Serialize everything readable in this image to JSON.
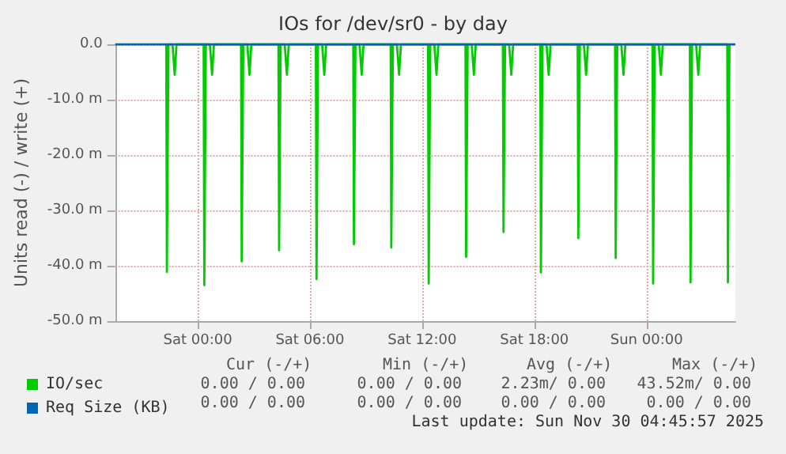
{
  "chart_data": {
    "type": "line",
    "title": "IOs for /dev/sr0 - by day",
    "ylabel": "Units read (-) / write (+)",
    "xlim": [
      "2025-11-28T19:35",
      "2025-11-30T04:45"
    ],
    "xticks": [
      {
        "value": "2025-11-29T00:00",
        "label": "Sat 00:00"
      },
      {
        "value": "2025-11-29T06:00",
        "label": "Sat 06:00"
      },
      {
        "value": "2025-11-29T12:00",
        "label": "Sat 12:00"
      },
      {
        "value": "2025-11-29T18:00",
        "label": "Sat 18:00"
      },
      {
        "value": "2025-11-30T00:00",
        "label": "Sun 00:00"
      }
    ],
    "ylim": [
      -50,
      0
    ],
    "yticks": [
      {
        "value": -50,
        "label": "-50.0 m"
      },
      {
        "value": -40,
        "label": "-40.0 m"
      },
      {
        "value": -30,
        "label": "-30.0 m"
      },
      {
        "value": -20,
        "label": "-20.0 m"
      },
      {
        "value": -10,
        "label": "-10.0 m"
      },
      {
        "value": 0,
        "label": "0.0"
      }
    ],
    "grid": true,
    "legend": "bottom left",
    "marker": "none",
    "line_style": "solid",
    "series": [
      {
        "name": "IO/sec",
        "color": "#00cc00",
        "x": [
          "2025-11-28T22:19",
          "2025-11-28T22:21",
          "2025-11-28T22:26",
          "2025-11-28T22:39",
          "2025-11-28T22:46",
          "2025-11-28T22:52",
          "2025-11-29T00:19",
          "2025-11-29T00:21",
          "2025-11-29T00:26",
          "2025-11-29T00:39",
          "2025-11-29T00:46",
          "2025-11-29T00:52",
          "2025-11-29T02:19",
          "2025-11-29T02:21",
          "2025-11-29T02:26",
          "2025-11-29T02:39",
          "2025-11-29T02:46",
          "2025-11-29T02:52",
          "2025-11-29T04:19",
          "2025-11-29T04:21",
          "2025-11-29T04:26",
          "2025-11-29T04:39",
          "2025-11-29T04:46",
          "2025-11-29T04:52",
          "2025-11-29T06:19",
          "2025-11-29T06:21",
          "2025-11-29T06:26",
          "2025-11-29T06:39",
          "2025-11-29T06:46",
          "2025-11-29T06:52",
          "2025-11-29T08:19",
          "2025-11-29T08:21",
          "2025-11-29T08:26",
          "2025-11-29T08:39",
          "2025-11-29T08:46",
          "2025-11-29T08:52",
          "2025-11-29T10:19",
          "2025-11-29T10:21",
          "2025-11-29T10:26",
          "2025-11-29T10:39",
          "2025-11-29T10:46",
          "2025-11-29T10:52",
          "2025-11-29T12:19",
          "2025-11-29T12:21",
          "2025-11-29T12:26",
          "2025-11-29T12:39",
          "2025-11-29T12:46",
          "2025-11-29T12:52",
          "2025-11-29T14:19",
          "2025-11-29T14:21",
          "2025-11-29T14:26",
          "2025-11-29T14:39",
          "2025-11-29T14:46",
          "2025-11-29T14:52",
          "2025-11-29T16:19",
          "2025-11-29T16:21",
          "2025-11-29T16:26",
          "2025-11-29T16:39",
          "2025-11-29T16:46",
          "2025-11-29T16:52",
          "2025-11-29T18:19",
          "2025-11-29T18:21",
          "2025-11-29T18:26",
          "2025-11-29T18:39",
          "2025-11-29T18:46",
          "2025-11-29T18:52",
          "2025-11-29T20:19",
          "2025-11-29T20:21",
          "2025-11-29T20:26",
          "2025-11-29T20:39",
          "2025-11-29T20:46",
          "2025-11-29T20:52",
          "2025-11-29T22:19",
          "2025-11-29T22:21",
          "2025-11-29T22:26",
          "2025-11-29T22:39",
          "2025-11-29T22:46",
          "2025-11-29T22:52",
          "2025-11-30T00:19",
          "2025-11-30T00:21",
          "2025-11-30T00:26",
          "2025-11-30T00:39",
          "2025-11-30T00:46",
          "2025-11-30T00:52",
          "2025-11-30T02:19",
          "2025-11-30T02:21",
          "2025-11-30T02:26",
          "2025-11-30T02:39",
          "2025-11-30T02:46",
          "2025-11-30T02:52",
          "2025-11-30T04:19",
          "2025-11-30T04:21",
          "2025-11-30T04:26"
        ],
        "values": [
          0,
          -41.1,
          0,
          0,
          -5.5,
          0,
          0,
          -43.5,
          0,
          0,
          -5.5,
          0,
          0,
          -39.2,
          0,
          0,
          -5.5,
          0,
          0,
          -37.2,
          0,
          0,
          -5.5,
          0,
          0,
          -42.4,
          0,
          0,
          -5.5,
          0,
          0,
          -36.1,
          0,
          0,
          -5.5,
          0,
          0,
          -36.7,
          0,
          0,
          -5.5,
          0,
          0,
          -43.2,
          0,
          0,
          -5.5,
          0,
          0,
          -38.4,
          0,
          0,
          -5.5,
          0,
          0,
          -33.9,
          0,
          0,
          -5.5,
          0,
          0,
          -41.2,
          0,
          0,
          -5.5,
          0,
          0,
          -35.0,
          0,
          0,
          -5.5,
          0,
          0,
          -38.6,
          0,
          0,
          -5.5,
          0,
          0,
          -43.2,
          0,
          0,
          -5.5,
          0,
          0,
          -43.0,
          0,
          0,
          -5.5,
          0,
          0,
          -43.0,
          0
        ]
      },
      {
        "name": "Req Size (KB)",
        "color": "#0066b3",
        "x": [
          "2025-11-28T19:35",
          "2025-11-30T04:45"
        ],
        "values": [
          0,
          0
        ]
      }
    ],
    "annotations": [
      "Cur (-/+)",
      "Min (-/+)",
      "Avg (-/+)",
      "Max (-/+)",
      "0.00 / 0.00",
      "0.00 / 0.00",
      "2.23m/ 0.00",
      "43.52m/ 0.00",
      "0.00 / 0.00",
      "0.00 / 0.00",
      "0.00 / 0.00",
      "0.00 / 0.00",
      "Last update: Sun Nov 30 04:45:57 2025"
    ]
  }
}
